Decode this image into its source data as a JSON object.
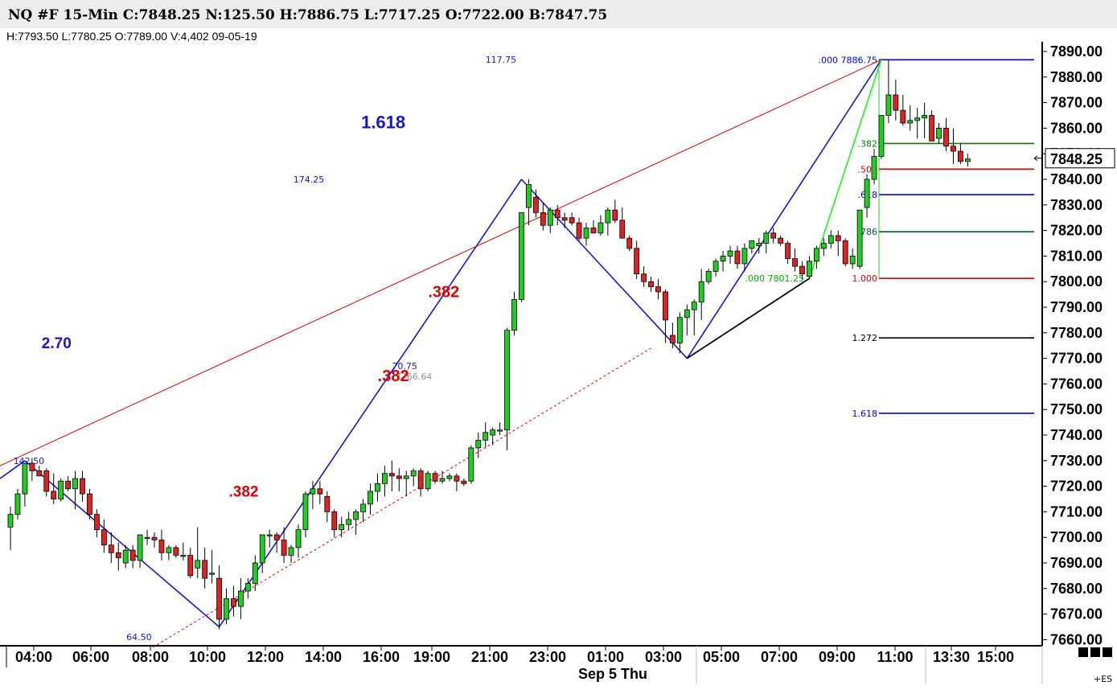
{
  "header": {
    "title": "NQ #F 15-Min C:7848.25 N:125.50 H:7886.75 L:7717.25 O:7722.00 B:7847.75",
    "subtitle": "H:7793.50  L:7780.25  O:7789.00  V:4,402  09-05-19"
  },
  "chart_data": {
    "type": "candlestick",
    "ylim": [
      7655,
      7895
    ],
    "yticks": [
      "7890.00",
      "7880.00",
      "7870.00",
      "7860.00",
      "7850.00",
      "7840.00",
      "7830.00",
      "7820.00",
      "7810.00",
      "7800.00",
      "7790.00",
      "7780.00",
      "7770.00",
      "7760.00",
      "7750.00",
      "7740.00",
      "7730.00",
      "7720.00",
      "7710.00",
      "7700.00",
      "7690.00",
      "7680.00",
      "7670.00",
      "7660.00"
    ],
    "xticks": [
      "04:00",
      "06:00",
      "08:00",
      "10:00",
      "12:00",
      "14:00",
      "16:00",
      "19:00",
      "21:00",
      "23:00",
      "01:00",
      "03:00",
      "05:00",
      "07:00",
      "09:00",
      "11:00",
      "13:30",
      "15:00"
    ],
    "date_label": "Sep 5 Thu",
    "last_price": "7848.25",
    "corner_label": "+ES",
    "candles": [
      [
        7704,
        7712,
        7695,
        7709
      ],
      [
        7709,
        7719,
        7707,
        7717
      ],
      [
        7717,
        7729,
        7712,
        7729
      ],
      [
        7729,
        7731,
        7722,
        7726
      ],
      [
        7726,
        7728,
        7724,
        7724
      ],
      [
        7726,
        7727,
        7716,
        7718
      ],
      [
        7718,
        7725,
        7713,
        7715
      ],
      [
        7715,
        7723,
        7714,
        7722
      ],
      [
        7722,
        7724,
        7718,
        7719
      ],
      [
        7719,
        7726,
        7711,
        7723
      ],
      [
        7723,
        7726,
        7714,
        7717
      ],
      [
        7717,
        7719,
        7707,
        7709
      ],
      [
        7709,
        7711,
        7700,
        7703
      ],
      [
        7703,
        7707,
        7694,
        7697
      ],
      [
        7697,
        7702,
        7690,
        7694
      ],
      [
        7694,
        7698,
        7687,
        7692
      ],
      [
        7690,
        7697,
        7688,
        7695
      ],
      [
        7695,
        7697,
        7688,
        7691
      ],
      [
        7691,
        7701,
        7688,
        7701
      ],
      [
        7700,
        7703,
        7697,
        7700
      ],
      [
        7700,
        7702,
        7696,
        7699
      ],
      [
        7699,
        7703,
        7691,
        7694
      ],
      [
        7694,
        7697,
        7691,
        7696
      ],
      [
        7696,
        7697,
        7692,
        7693
      ],
      [
        7693,
        7698,
        7691,
        7693
      ],
      [
        7693,
        7696,
        7684,
        7685
      ],
      [
        7688,
        7704,
        7684,
        7691
      ],
      [
        7691,
        7696,
        7680,
        7684
      ],
      [
        7686,
        7695,
        7682,
        7686
      ],
      [
        7684,
        7689,
        7664,
        7668
      ],
      [
        7668,
        7680,
        7666,
        7676
      ],
      [
        7676,
        7681,
        7669,
        7673
      ],
      [
        7673,
        7684,
        7668,
        7679
      ],
      [
        7679,
        7684,
        7676,
        7682
      ],
      [
        7682,
        7693,
        7679,
        7690
      ],
      [
        7690,
        7701,
        7686,
        7701
      ],
      [
        7701,
        7703,
        7696,
        7701
      ],
      [
        7701,
        7702,
        7694,
        7699
      ],
      [
        7699,
        7704,
        7690,
        7693
      ],
      [
        7693,
        7697,
        7690,
        7696
      ],
      [
        7696,
        7705,
        7692,
        7703
      ],
      [
        7703,
        7718,
        7700,
        7717
      ],
      [
        7717,
        7722,
        7711,
        7719
      ],
      [
        7719,
        7722,
        7713,
        7717
      ],
      [
        7716,
        7718,
        7706,
        7710
      ],
      [
        7710,
        7711,
        7700,
        7703
      ],
      [
        7703,
        7708,
        7700,
        7705
      ],
      [
        7705,
        7710,
        7703,
        7707
      ],
      [
        7707,
        7711,
        7701,
        7710
      ],
      [
        7710,
        7715,
        7706,
        7713
      ],
      [
        7713,
        7721,
        7709,
        7718
      ],
      [
        7718,
        7725,
        7714,
        7721
      ],
      [
        7721,
        7728,
        7716,
        7725
      ],
      [
        7725,
        7730,
        7718,
        7724
      ],
      [
        7724,
        7727,
        7718,
        7723
      ],
      [
        7723,
        7726,
        7716,
        7724
      ],
      [
        7724,
        7727,
        7720,
        7726
      ],
      [
        7726,
        7727,
        7716,
        7719
      ],
      [
        7719,
        7726,
        7718,
        7725
      ],
      [
        7725,
        7726,
        7721,
        7722
      ],
      [
        7722,
        7726,
        7721,
        7723
      ],
      [
        7723,
        7725,
        7722,
        7724
      ],
      [
        7724,
        7725,
        7718,
        7722
      ],
      [
        7722,
        7723,
        7720,
        7721
      ],
      [
        7722,
        7736,
        7721,
        7735
      ],
      [
        7735,
        7741,
        7731,
        7738
      ],
      [
        7738,
        7745,
        7735,
        7741
      ],
      [
        7740,
        7743,
        7736,
        7742
      ],
      [
        7742,
        7745,
        7740,
        7742
      ],
      [
        7742,
        7782,
        7734,
        7781
      ],
      [
        7781,
        7796,
        7779,
        7793
      ],
      [
        7793,
        7826,
        7792,
        7827
      ],
      [
        7829,
        7840,
        7822,
        7838
      ],
      [
        7833,
        7836,
        7825,
        7827
      ],
      [
        7827,
        7831,
        7820,
        7822
      ],
      [
        7822,
        7829,
        7819,
        7828
      ],
      [
        7828,
        7830,
        7822,
        7825
      ],
      [
        7825,
        7827,
        7821,
        7824
      ],
      [
        7825,
        7827,
        7822,
        7823
      ],
      [
        7823,
        7825,
        7816,
        7817
      ],
      [
        7817,
        7823,
        7814,
        7821
      ],
      [
        7821,
        7824,
        7819,
        7819
      ],
      [
        7819,
        7826,
        7818,
        7823
      ],
      [
        7823,
        7829,
        7818,
        7828
      ],
      [
        7828,
        7832,
        7823,
        7824
      ],
      [
        7824,
        7829,
        7818,
        7817
      ],
      [
        7817,
        7818,
        7812,
        7813
      ],
      [
        7813,
        7816,
        7801,
        7803
      ],
      [
        7803,
        7806,
        7798,
        7800
      ],
      [
        7800,
        7802,
        7796,
        7798
      ],
      [
        7798,
        7801,
        7793,
        7796
      ],
      [
        7796,
        7797,
        7776,
        7785
      ],
      [
        7779,
        7784,
        7774,
        7776
      ],
      [
        7776,
        7788,
        7772,
        7786
      ],
      [
        7786,
        7791,
        7779,
        7789
      ],
      [
        7789,
        7793,
        7779,
        7792
      ],
      [
        7792,
        7805,
        7785,
        7800
      ],
      [
        7800,
        7805,
        7799,
        7804
      ],
      [
        7804,
        7809,
        7802,
        7808
      ],
      [
        7808,
        7812,
        7804,
        7810
      ],
      [
        7810,
        7814,
        7807,
        7812
      ],
      [
        7812,
        7814,
        7805,
        7807
      ],
      [
        7807,
        7815,
        7804,
        7813
      ],
      [
        7813,
        7816,
        7811,
        7816
      ],
      [
        7814,
        7817,
        7811,
        7815
      ],
      [
        7815,
        7820,
        7811,
        7819
      ],
      [
        7819,
        7821,
        7815,
        7817
      ],
      [
        7817,
        7818,
        7814,
        7815
      ],
      [
        7815,
        7816,
        7807,
        7809
      ],
      [
        7809,
        7813,
        7804,
        7806
      ],
      [
        7806,
        7808,
        7801,
        7803
      ],
      [
        7802,
        7810,
        7801,
        7808
      ],
      [
        7808,
        7814,
        7805,
        7813
      ],
      [
        7813,
        7817,
        7810,
        7815
      ],
      [
        7815,
        7820,
        7813,
        7818
      ],
      [
        7818,
        7820,
        7810,
        7816
      ],
      [
        7816,
        7817,
        7806,
        7807
      ],
      [
        7807,
        7813,
        7805,
        7810
      ],
      [
        7806,
        7828,
        7805,
        7828
      ],
      [
        7829,
        7842,
        7825,
        7840
      ],
      [
        7840,
        7852,
        7838,
        7849
      ],
      [
        7849,
        7865,
        7848,
        7865
      ],
      [
        7865,
        7887,
        7862,
        7873
      ],
      [
        7873,
        7879,
        7863,
        7867
      ],
      [
        7867,
        7873,
        7861,
        7862
      ],
      [
        7862,
        7869,
        7859,
        7863
      ],
      [
        7863,
        7868,
        7856,
        7864
      ],
      [
        7864,
        7870,
        7856,
        7865
      ],
      [
        7865,
        7867,
        7855,
        7855
      ],
      [
        7856,
        7862,
        7854,
        7860
      ],
      [
        7860,
        7864,
        7851,
        7853
      ],
      [
        7853,
        7860,
        7846,
        7851
      ],
      [
        7851,
        7854,
        7846,
        7847
      ],
      [
        7847,
        7850,
        7845,
        7848
      ]
    ],
    "annotations": [
      {
        "text": "2.70",
        "x": 6.4,
        "y": 7774,
        "color": "#1515d8",
        "size": 19
      },
      {
        "text": "1.618",
        "x": 51.8,
        "y": 7860,
        "color": "#1515d8",
        "size": 22
      },
      {
        "text": ".382",
        "x": 32.4,
        "y": 7716,
        "color": "#e00000",
        "size": 19
      },
      {
        "text": ".382",
        "x": 53.2,
        "y": 7761,
        "color": "#e00000",
        "size": 20
      },
      {
        "text": ".382",
        "x": 60.2,
        "y": 7794,
        "color": "#e00000",
        "size": 20
      }
    ],
    "swing_labels": [
      {
        "text": "142.50",
        "x": 0.4,
        "y": 7730,
        "color": "#1515d8"
      },
      {
        "text": "64.50",
        "x": 16.1,
        "y": 7661,
        "color": "#1515d8"
      },
      {
        "text": "174.25",
        "x": 39.3,
        "y": 7840,
        "color": "#1515d8"
      },
      {
        "text": "70.75",
        "x": 53.0,
        "y": 7767,
        "color": "#1515d8"
      },
      {
        "text": "7766.64",
        "x": 53.5,
        "y": 7763,
        "color": "#909090"
      },
      {
        "text": "117.75",
        "x": 66.0,
        "y": 7886.8,
        "color": "#1515d8"
      }
    ],
    "fib_levels": [
      {
        "label": ".000 7886.75",
        "price": 7886.75,
        "color": "#0000ff"
      },
      {
        "label": ".382",
        "price": 7854.0,
        "color": "#008000"
      },
      {
        "label": ".500",
        "price": 7844.0,
        "color": "#e00000"
      },
      {
        "label": ".618",
        "price": 7834.0,
        "color": "#0000ff"
      },
      {
        "label": ".786",
        "price": 7819.5,
        "color": "#005050"
      },
      {
        "label": "1.000",
        "price": 7801.25,
        "color": "#e00000"
      },
      {
        "label": "1.272",
        "price": 7778.0,
        "color": "#000000"
      },
      {
        "label": "1.618",
        "price": 7748.5,
        "color": "#0000ff"
      }
    ],
    "fib_start_label": {
      "text": ".000  7801.25",
      "price": 7801.25,
      "color": "#00b000"
    }
  }
}
